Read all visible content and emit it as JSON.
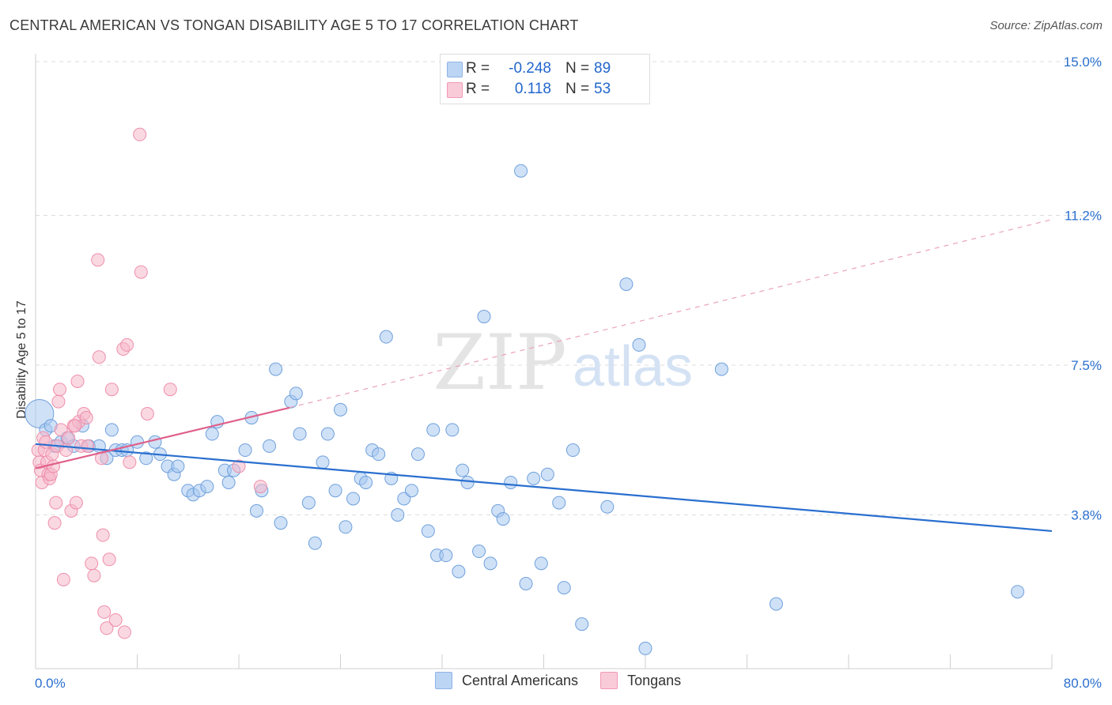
{
  "header": {
    "title": "CENTRAL AMERICAN VS TONGAN DISABILITY AGE 5 TO 17 CORRELATION CHART",
    "source": "Source: ZipAtlas.com"
  },
  "watermark": {
    "zip": "ZIP",
    "atlas": "atlas"
  },
  "legend_top": [
    {
      "r_label": "R =",
      "r_value": "-0.248",
      "n_label": "N =",
      "n_value": "89",
      "color": "#a8c8f0"
    },
    {
      "r_label": "R =",
      "r_value": "0.118",
      "n_label": "N =",
      "n_value": "53",
      "color": "#f6b8cb"
    }
  ],
  "legend_bottom": [
    {
      "label": "Central Americans",
      "color": "#a8c8f0"
    },
    {
      "label": "Tongans",
      "color": "#f6b8cb"
    }
  ],
  "chart_data": {
    "type": "scatter",
    "ylabel": "Disability Age 5 to 17",
    "xlim": [
      0,
      80
    ],
    "ylim": [
      0,
      15
    ],
    "x_tick_labels": [
      {
        "value": 0,
        "label": "0.0%"
      },
      {
        "value": 80,
        "label": "80.0%"
      }
    ],
    "y_tick_labels": [
      {
        "value": 3.8,
        "label": "3.8%"
      },
      {
        "value": 7.5,
        "label": "7.5%"
      },
      {
        "value": 11.2,
        "label": "11.2%"
      },
      {
        "value": 15.0,
        "label": "15.0%"
      }
    ],
    "grid": true,
    "series": [
      {
        "name": "Central Americans",
        "color": "#6fa0dc",
        "fill": "#a8c8f0",
        "trend": {
          "x": [
            0,
            80
          ],
          "y": [
            5.55,
            3.4
          ],
          "color": "#2a6fcf"
        },
        "points": [
          [
            0.3,
            6.3
          ],
          [
            0.8,
            5.9
          ],
          [
            1.2,
            6.0
          ],
          [
            1.5,
            5.5
          ],
          [
            2.0,
            5.6
          ],
          [
            2.5,
            5.7
          ],
          [
            3.0,
            5.5
          ],
          [
            3.7,
            6.0
          ],
          [
            4.2,
            5.5
          ],
          [
            5.0,
            5.5
          ],
          [
            5.6,
            5.2
          ],
          [
            6.0,
            5.9
          ],
          [
            6.3,
            5.4
          ],
          [
            6.8,
            5.4
          ],
          [
            7.2,
            5.4
          ],
          [
            8.0,
            5.6
          ],
          [
            8.7,
            5.2
          ],
          [
            9.4,
            5.6
          ],
          [
            9.8,
            5.3
          ],
          [
            10.4,
            5.0
          ],
          [
            10.9,
            4.8
          ],
          [
            11.2,
            5.0
          ],
          [
            12.0,
            4.4
          ],
          [
            12.4,
            4.3
          ],
          [
            12.9,
            4.4
          ],
          [
            13.5,
            4.5
          ],
          [
            13.9,
            5.8
          ],
          [
            14.3,
            6.1
          ],
          [
            14.9,
            4.9
          ],
          [
            15.2,
            4.6
          ],
          [
            15.6,
            4.9
          ],
          [
            16.5,
            5.4
          ],
          [
            17.0,
            6.2
          ],
          [
            17.4,
            3.9
          ],
          [
            17.8,
            4.4
          ],
          [
            18.4,
            5.5
          ],
          [
            18.9,
            7.4
          ],
          [
            19.3,
            3.6
          ],
          [
            20.1,
            6.6
          ],
          [
            20.5,
            6.8
          ],
          [
            20.8,
            5.8
          ],
          [
            21.5,
            4.1
          ],
          [
            22.0,
            3.1
          ],
          [
            22.6,
            5.1
          ],
          [
            23.0,
            5.8
          ],
          [
            23.6,
            4.4
          ],
          [
            24.0,
            6.4
          ],
          [
            24.4,
            3.5
          ],
          [
            25.0,
            4.2
          ],
          [
            25.6,
            4.7
          ],
          [
            26.0,
            4.6
          ],
          [
            26.5,
            5.4
          ],
          [
            27.0,
            5.3
          ],
          [
            27.6,
            8.2
          ],
          [
            28.0,
            4.7
          ],
          [
            28.5,
            3.8
          ],
          [
            29.0,
            4.2
          ],
          [
            29.6,
            4.4
          ],
          [
            30.1,
            5.3
          ],
          [
            30.9,
            3.4
          ],
          [
            31.3,
            5.9
          ],
          [
            31.6,
            2.8
          ],
          [
            32.3,
            2.8
          ],
          [
            32.8,
            5.9
          ],
          [
            33.3,
            2.4
          ],
          [
            33.6,
            4.9
          ],
          [
            34.0,
            4.6
          ],
          [
            34.9,
            2.9
          ],
          [
            35.3,
            8.7
          ],
          [
            35.8,
            2.6
          ],
          [
            36.4,
            3.9
          ],
          [
            36.8,
            3.7
          ],
          [
            37.4,
            4.6
          ],
          [
            38.2,
            12.3
          ],
          [
            38.6,
            2.1
          ],
          [
            39.2,
            4.7
          ],
          [
            39.8,
            2.6
          ],
          [
            40.3,
            4.8
          ],
          [
            41.2,
            4.1
          ],
          [
            41.6,
            2.0
          ],
          [
            42.3,
            5.4
          ],
          [
            43.0,
            1.1
          ],
          [
            45.0,
            4.0
          ],
          [
            46.5,
            9.5
          ],
          [
            48.0,
            0.5
          ],
          [
            47.5,
            8.0
          ],
          [
            54.0,
            7.4
          ],
          [
            58.3,
            1.6
          ],
          [
            77.3,
            1.9
          ]
        ]
      },
      {
        "name": "Tongans",
        "color": "#ee8fab",
        "fill": "#f6b8cb",
        "trend": {
          "x": [
            0,
            20.0
          ],
          "y": [
            4.95,
            6.45
          ],
          "color": "#e0608a"
        },
        "trend_extension": {
          "x": [
            20.0,
            80
          ],
          "y": [
            6.45,
            11.1
          ]
        },
        "points": [
          [
            0.2,
            5.4
          ],
          [
            0.3,
            5.1
          ],
          [
            0.4,
            4.9
          ],
          [
            0.5,
            4.6
          ],
          [
            0.6,
            5.7
          ],
          [
            0.7,
            5.4
          ],
          [
            0.8,
            5.6
          ],
          [
            0.9,
            5.1
          ],
          [
            1.0,
            4.8
          ],
          [
            1.1,
            4.7
          ],
          [
            1.2,
            4.8
          ],
          [
            1.3,
            5.3
          ],
          [
            1.4,
            5.0
          ],
          [
            1.5,
            3.6
          ],
          [
            1.6,
            4.1
          ],
          [
            1.7,
            5.5
          ],
          [
            1.8,
            6.6
          ],
          [
            1.9,
            6.9
          ],
          [
            2.0,
            5.9
          ],
          [
            2.2,
            2.2
          ],
          [
            2.4,
            5.4
          ],
          [
            2.6,
            5.7
          ],
          [
            2.8,
            3.9
          ],
          [
            3.0,
            6.0
          ],
          [
            3.2,
            4.1
          ],
          [
            3.3,
            7.1
          ],
          [
            3.4,
            6.1
          ],
          [
            3.6,
            5.5
          ],
          [
            3.8,
            6.3
          ],
          [
            4.0,
            6.2
          ],
          [
            4.1,
            5.5
          ],
          [
            4.4,
            2.6
          ],
          [
            4.6,
            2.3
          ],
          [
            4.9,
            10.1
          ],
          [
            5.0,
            7.7
          ],
          [
            5.2,
            5.2
          ],
          [
            5.3,
            3.3
          ],
          [
            5.4,
            1.4
          ],
          [
            5.6,
            1.0
          ],
          [
            5.8,
            2.7
          ],
          [
            6.0,
            6.9
          ],
          [
            6.3,
            1.2
          ],
          [
            6.9,
            7.9
          ],
          [
            7.0,
            0.9
          ],
          [
            7.2,
            8.0
          ],
          [
            7.4,
            5.1
          ],
          [
            8.2,
            13.2
          ],
          [
            8.3,
            9.8
          ],
          [
            8.8,
            6.3
          ],
          [
            10.6,
            6.9
          ],
          [
            16.0,
            5.0
          ],
          [
            17.7,
            4.5
          ],
          [
            3.1,
            6.0
          ]
        ]
      }
    ]
  }
}
